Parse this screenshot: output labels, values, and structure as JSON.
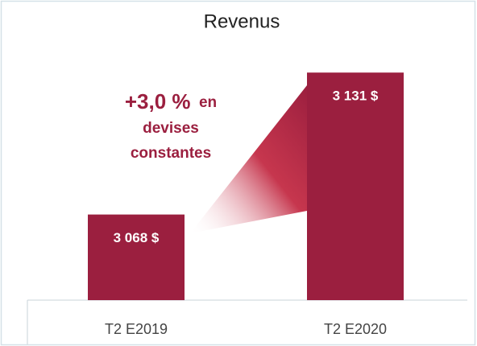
{
  "chart_data": {
    "type": "bar",
    "title": "Revenus",
    "categories": [
      "T2 E2019",
      "T2 E2020"
    ],
    "values": [
      3068,
      3131
    ],
    "value_labels": [
      "3 068 $",
      "3 131 $"
    ],
    "color": "#9b1f3f",
    "ylim": [
      3030,
      3145
    ],
    "annotation": [
      "+3,0 %",
      "en",
      "devises",
      "constantes"
    ]
  }
}
